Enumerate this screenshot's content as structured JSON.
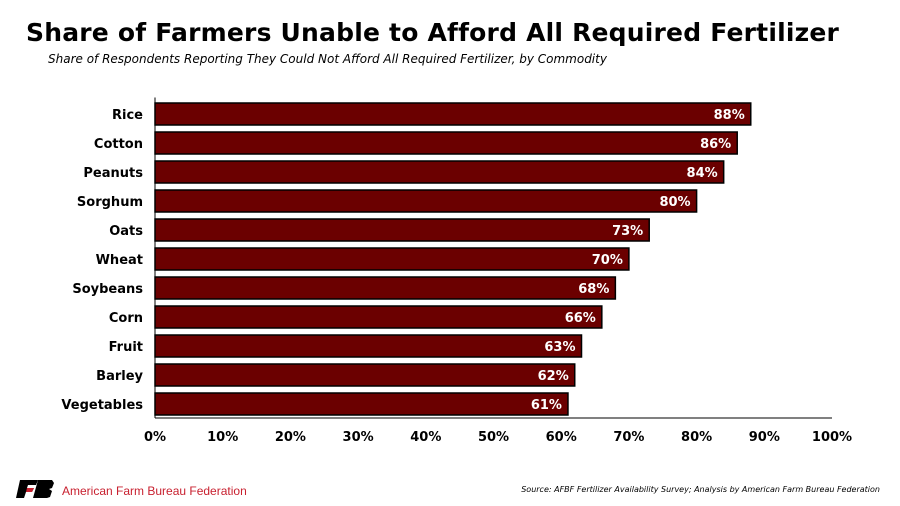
{
  "title": "Share of Farmers Unable to Afford All Required Fertilizer",
  "subtitle": "Share of Respondents Reporting They Could Not Afford All Required Fertilizer, by Commodity",
  "source": "Source: AFBF Fertilizer Availability Survey; Analysis by American Farm Bureau Federation",
  "organization": "American Farm Bureau Federation",
  "logo_text": "FB",
  "colors": {
    "bar": "#6b0000",
    "bar_border": "#000000",
    "brand": "#c8202f"
  },
  "chart_data": {
    "type": "bar",
    "orientation": "horizontal",
    "title": "Share of Farmers Unable to Afford All Required Fertilizer",
    "categories": [
      "Rice",
      "Cotton",
      "Peanuts",
      "Sorghum",
      "Oats",
      "Wheat",
      "Soybeans",
      "Corn",
      "Fruit",
      "Barley",
      "Vegetables"
    ],
    "values": [
      88,
      86,
      84,
      80,
      73,
      70,
      68,
      66,
      63,
      62,
      61
    ],
    "data_labels": [
      "88%",
      "86%",
      "84%",
      "80%",
      "73%",
      "70%",
      "68%",
      "66%",
      "63%",
      "62%",
      "61%"
    ],
    "xlim": [
      0,
      100
    ],
    "xticks": [
      "0%",
      "10%",
      "20%",
      "30%",
      "40%",
      "50%",
      "60%",
      "70%",
      "80%",
      "90%",
      "100%"
    ],
    "xlabel": "",
    "ylabel": "",
    "grid": false
  }
}
